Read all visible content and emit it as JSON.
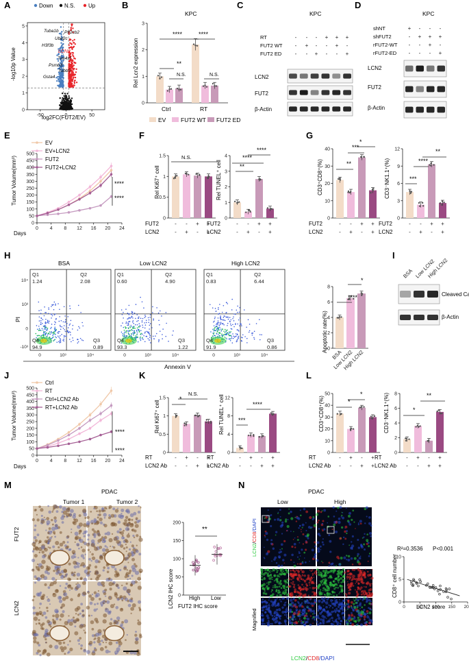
{
  "figure": {
    "background": "#ffffff",
    "axis_color": "#222222"
  },
  "colors": {
    "ev": "#f3dcc8",
    "fut2wt": "#f0bcdc",
    "fut2ed": "#c89ab8",
    "rt": "#f3dcc8",
    "lcn2": "#c07aa8",
    "dark": "#9a4a82",
    "up": "#e8262b",
    "down": "#4a7fc0",
    "ns": "#111111",
    "green": "#2ecc40",
    "red": "#e02828",
    "blue": "#2545c8",
    "ihc": "#a0764a"
  },
  "panels": {
    "A": {
      "letter": "A",
      "legend": [
        "Down",
        "N.S.",
        "Up"
      ],
      "ylabel": "-log10p Value",
      "xlabel": "log2FC(FUT2/EV)",
      "genes": [
        "Tuba1b",
        "Ube2c",
        "H3f3b",
        "Ptf2cb2",
        "LCN2",
        "Tim4sf",
        "Psmb3",
        "Tubb5",
        "Gsta4"
      ]
    },
    "B": {
      "letter": "B",
      "title": "KPC",
      "ylabel": "Rel Lcn2 expression",
      "groups": [
        "Ctrl",
        "RT"
      ],
      "legend": [
        "EV",
        "FUT2 WT",
        "FUT2 ED"
      ],
      "stars": [
        "**",
        "N.S.",
        "****",
        "****",
        "N.S."
      ]
    },
    "C": {
      "letter": "C",
      "title": "KPC",
      "rows": [
        "RT",
        "FUT2 WT",
        "FUT2 ED"
      ],
      "signs": [
        [
          "-",
          "-",
          "-",
          "+",
          "+",
          "+"
        ],
        [
          "-",
          "+",
          "-",
          "-",
          "+",
          "-"
        ],
        [
          "-",
          "-",
          "+",
          "-",
          "-",
          "+"
        ]
      ],
      "bands": [
        "LCN2",
        "FUT2",
        "β-Actin"
      ]
    },
    "D": {
      "letter": "D",
      "title": "KPC",
      "rows": [
        "shNT",
        "shFUT2",
        "rFUT2-WT",
        "rFUT2-ED"
      ],
      "signs": [
        [
          "+",
          "-",
          "-",
          "-"
        ],
        [
          "-",
          "+",
          "+",
          "+"
        ],
        [
          "-",
          "-",
          "+",
          "-"
        ],
        [
          "-",
          "-",
          "-",
          "+"
        ]
      ],
      "bands": [
        "LCN2",
        "FUT2",
        "β-Actin"
      ]
    },
    "E": {
      "letter": "E",
      "ylabel": "Tumor Volume(mm³)",
      "xlabel": "Days",
      "legend": [
        "EV",
        "EV+LCN2",
        "FUT2",
        "FUT2+LCN2"
      ],
      "stars": [
        "****",
        "****"
      ]
    },
    "F": {
      "letter": "F",
      "plots": [
        {
          "ylabel": "Rel Ki67⁺ cell",
          "stars": [
            "N.S."
          ]
        },
        {
          "ylabel": "Rel TUNEL⁺ cell",
          "stars": [
            "****",
            "**",
            "****"
          ]
        }
      ],
      "rows": [
        "FUT2",
        "LCN2"
      ],
      "signs": [
        [
          "-",
          "-",
          "+",
          "+"
        ],
        [
          "-",
          "+",
          "-",
          "+"
        ]
      ]
    },
    "G": {
      "letter": "G",
      "plots": [
        {
          "ylabel": "CD3⁺CD8⁺(%)",
          "stars": [
            "**",
            "***",
            "*"
          ]
        },
        {
          "ylabel": "CD3⁻NK1.1⁺(%)",
          "stars": [
            "***",
            "****",
            "**"
          ]
        }
      ],
      "rows": [
        "FUT2",
        "LCN2"
      ],
      "signs": [
        [
          "-",
          "-",
          "+",
          "+"
        ],
        [
          "-",
          "+",
          "-",
          "+"
        ]
      ]
    },
    "H": {
      "letter": "H",
      "plots": [
        {
          "title": "BSA",
          "q1": "1.24",
          "q2": "2.08",
          "q4": "94.9",
          "q3": "0.89"
        },
        {
          "title": "Low LCN2",
          "q1": "0.60",
          "q2": "4.90",
          "q4": "93.3",
          "q3": "1.22"
        },
        {
          "title": "High LCN2",
          "q1": "0.83",
          "q2": "6.44",
          "q4": "91.9",
          "q3": "0.86"
        }
      ],
      "quad_labels": [
        "Q1",
        "Q2",
        "Q3",
        "Q4"
      ],
      "ticks": [
        "10⁴",
        "10³",
        "0",
        "-10³",
        "10³",
        "10⁴"
      ],
      "ylabel": "PI",
      "xlabel": "Annexin V",
      "bar": {
        "ylabel": "Apoptotic rate(%)",
        "categories": [
          "BSA",
          "Low LCN2",
          "High LCN2"
        ],
        "stars": [
          "****",
          "*"
        ]
      }
    },
    "I": {
      "letter": "I",
      "cols": [
        "BSA",
        "Low LCN2",
        "High LCN2"
      ],
      "bands": [
        "Cleaved Caspase-3",
        "β-Actin"
      ]
    },
    "J": {
      "letter": "J",
      "ylabel": "Tumor Volume(mm³)",
      "xlabel": "Days",
      "legend": [
        "Ctrl",
        "RT",
        "Ctrl+LCN2 Ab",
        "RT+LCN2 Ab"
      ],
      "stars": [
        "****",
        "****"
      ]
    },
    "K": {
      "letter": "K",
      "plots": [
        {
          "ylabel": "Rel Ki67⁺ cell",
          "stars": [
            "*",
            "N.S."
          ]
        },
        {
          "ylabel": "Rel TUNEL⁺ cell",
          "stars": [
            "***",
            "****"
          ]
        }
      ],
      "rows": [
        "RT",
        "LCN2 Ab"
      ],
      "signs": [
        [
          "-",
          "+",
          "-",
          "+"
        ],
        [
          "-",
          "-",
          "+",
          "+"
        ]
      ]
    },
    "L": {
      "letter": "L",
      "plots": [
        {
          "ylabel": "CD3⁺CD8⁺(%)",
          "stars": [
            "*",
            "*"
          ]
        },
        {
          "ylabel": "CD3⁻NK1.1⁺(%)",
          "stars": [
            "*",
            "**"
          ]
        }
      ],
      "rows": [
        "RT",
        "LCN2 Ab"
      ],
      "signs": [
        [
          "-",
          "+",
          "-",
          "+"
        ],
        [
          "-",
          "-",
          "+",
          "+"
        ]
      ]
    },
    "M": {
      "letter": "M",
      "title": "PDAC",
      "cols": [
        "Tumor 1",
        "Tumor 2"
      ],
      "rows": [
        "FUT2",
        "LCN2"
      ],
      "ylabel": "LCN2 IHC score",
      "xlabel": "FUT2 IHC score",
      "categories": [
        "High",
        "Low"
      ],
      "stars": "**"
    },
    "N": {
      "letter": "N",
      "title": "PDAC",
      "cols": [
        "Low",
        "High"
      ],
      "side": [
        "LCN2",
        "/",
        "CD8",
        "/DAPI"
      ],
      "magnified": "Magnified",
      "bottom": [
        "LCN2",
        "/",
        "CD8",
        "/DAPI"
      ],
      "stat1": "R²=0.3536",
      "stat2": "P<0.001",
      "ylabel": "CD8⁺ cell number",
      "xlabel": "LCN2 score"
    }
  },
  "chart_data": [
    {
      "type": "scatter",
      "panel": "A",
      "title": "",
      "xlabel": "log2FC(FUT2/EV)",
      "ylabel": "-log10p Value",
      "xlim": [
        -75,
        75
      ],
      "ylim": [
        0,
        5.2
      ],
      "xticks": [
        -50,
        0,
        50
      ],
      "yticks": [
        0,
        1,
        2,
        3,
        4,
        5
      ],
      "threshold": 1.3,
      "legend": [
        "Down",
        "N.S.",
        "Up"
      ]
    },
    {
      "type": "bar",
      "panel": "B",
      "title": "KPC",
      "ylabel": "Rel Lcn2 expression",
      "categories": [
        "Ctrl",
        "RT"
      ],
      "series": [
        {
          "name": "EV",
          "values": [
            1.0,
            2.2
          ]
        },
        {
          "name": "FUT2 WT",
          "values": [
            0.5,
            0.65
          ]
        },
        {
          "name": "FUT2 ED",
          "values": [
            0.55,
            0.65
          ]
        }
      ],
      "ylim": [
        0,
        3
      ],
      "yticks": [
        0,
        1,
        2,
        3
      ]
    },
    {
      "type": "line",
      "panel": "E",
      "xlabel": "Days",
      "ylabel": "Tumor Volume(mm³)",
      "x": [
        0,
        3,
        6,
        9,
        12,
        15,
        18,
        21
      ],
      "xticks": [
        0,
        4,
        8,
        12,
        16,
        20,
        24
      ],
      "yticks": [
        0,
        50,
        100,
        150,
        200,
        250,
        300,
        350,
        400,
        450,
        500
      ],
      "ylim": [
        0,
        500
      ],
      "series": [
        {
          "name": "EV",
          "values": [
            50,
            70,
            95,
            130,
            175,
            230,
            300,
            380
          ]
        },
        {
          "name": "EV+LCN2",
          "values": [
            50,
            75,
            105,
            150,
            200,
            260,
            330,
            410
          ]
        },
        {
          "name": "FUT2",
          "values": [
            50,
            58,
            65,
            75,
            90,
            105,
            125,
            190
          ]
        },
        {
          "name": "FUT2+LCN2",
          "values": [
            50,
            70,
            95,
            130,
            170,
            215,
            270,
            350
          ]
        }
      ]
    },
    {
      "type": "bar",
      "panel": "F-Ki67",
      "ylabel": "Rel Ki67⁺ cell",
      "categories": [
        "1",
        "2",
        "3",
        "4"
      ],
      "values": [
        1.0,
        1.05,
        1.02,
        1.0
      ],
      "ylim": [
        0,
        1.5
      ],
      "yticks": [
        0,
        0.5,
        1.0,
        1.5
      ]
    },
    {
      "type": "bar",
      "panel": "F-TUNEL",
      "ylabel": "Rel TUNEL⁺ cell",
      "categories": [
        "1",
        "2",
        "3",
        "4"
      ],
      "values": [
        1.0,
        0.4,
        2.5,
        0.6
      ],
      "ylim": [
        0,
        4
      ],
      "yticks": [
        0,
        1,
        2,
        3,
        4
      ]
    },
    {
      "type": "bar",
      "panel": "G-CD8",
      "ylabel": "CD3⁺CD8⁺(%)",
      "categories": [
        "1",
        "2",
        "3",
        "4"
      ],
      "values": [
        22,
        15,
        35,
        16
      ],
      "ylim": [
        0,
        40
      ],
      "yticks": [
        0,
        10,
        20,
        30,
        40
      ]
    },
    {
      "type": "bar",
      "panel": "G-NK",
      "ylabel": "CD3⁻NK1.1⁺(%)",
      "categories": [
        "1",
        "2",
        "3",
        "4"
      ],
      "values": [
        4.5,
        2.3,
        9.3,
        2.6
      ],
      "ylim": [
        0,
        12
      ],
      "yticks": [
        0,
        3,
        6,
        9,
        12
      ]
    },
    {
      "type": "bar",
      "panel": "H-apoptosis",
      "ylabel": "Apoptotic rate(%)",
      "categories": [
        "BSA",
        "Low LCN2",
        "High LCN2"
      ],
      "values": [
        4.0,
        6.5,
        7.1
      ],
      "ylim": [
        0,
        8
      ],
      "yticks": [
        0,
        2,
        4,
        6,
        8
      ]
    },
    {
      "type": "line",
      "panel": "J",
      "xlabel": "Days",
      "ylabel": "Tumor Volume(mm³)",
      "x": [
        0,
        3,
        6,
        9,
        12,
        15,
        18,
        21
      ],
      "xticks": [
        0,
        4,
        8,
        12,
        16,
        20,
        24
      ],
      "yticks": [
        0,
        50,
        100,
        150,
        200,
        250,
        300,
        350,
        400,
        450,
        500
      ],
      "ylim": [
        0,
        500
      ],
      "series": [
        {
          "name": "Ctrl",
          "values": [
            50,
            80,
            120,
            170,
            230,
            300,
            380,
            480
          ]
        },
        {
          "name": "RT",
          "values": [
            50,
            65,
            90,
            120,
            160,
            200,
            260,
            310
          ]
        },
        {
          "name": "Ctrl+LCN2 Ab",
          "values": [
            50,
            75,
            110,
            150,
            200,
            260,
            310,
            370
          ]
        },
        {
          "name": "RT+LCN2 Ab",
          "values": [
            50,
            58,
            70,
            85,
            100,
            120,
            150,
            175
          ]
        }
      ]
    },
    {
      "type": "bar",
      "panel": "K-Ki67",
      "ylabel": "Rel Ki67⁺ cell",
      "categories": [
        "1",
        "2",
        "3",
        "4"
      ],
      "values": [
        1.0,
        0.78,
        1.02,
        0.85
      ],
      "ylim": [
        0,
        1.5
      ],
      "yticks": [
        0,
        0.5,
        1.0,
        1.5
      ]
    },
    {
      "type": "bar",
      "panel": "K-TUNEL",
      "ylabel": "Rel TUNEL⁺ cell",
      "categories": [
        "1",
        "2",
        "3",
        "4"
      ],
      "values": [
        1.0,
        3.8,
        3.6,
        8.5
      ],
      "ylim": [
        0,
        12
      ],
      "yticks": [
        0,
        4,
        8,
        12
      ]
    },
    {
      "type": "bar",
      "panel": "L-CD8",
      "ylabel": "CD3⁺CD8⁺(%)",
      "categories": [
        "1",
        "2",
        "3",
        "4"
      ],
      "values": [
        33,
        20,
        38,
        30
      ],
      "ylim": [
        0,
        50
      ],
      "yticks": [
        0,
        10,
        20,
        30,
        40,
        50
      ]
    },
    {
      "type": "bar",
      "panel": "L-NK",
      "ylabel": "CD3⁻NK1.1⁺(%)",
      "categories": [
        "1",
        "2",
        "3",
        "4"
      ],
      "values": [
        1.8,
        3.6,
        1.6,
        5.5
      ],
      "ylim": [
        0,
        8
      ],
      "yticks": [
        0,
        2,
        4,
        6,
        8
      ]
    },
    {
      "type": "scatter",
      "panel": "M",
      "ylabel": "LCN2 IHC score",
      "xlabel": "FUT2 IHC score",
      "categories": [
        "High",
        "Low"
      ],
      "means": [
        82,
        112
      ],
      "ylim": [
        0,
        200
      ],
      "yticks": [
        0,
        50,
        100,
        150,
        200
      ]
    },
    {
      "type": "scatter",
      "panel": "N",
      "ylabel": "CD8⁺ cell number",
      "xlabel": "LCN2 score",
      "xlim": [
        0,
        200
      ],
      "ylim": [
        0,
        10
      ],
      "xticks": [
        0,
        50,
        100,
        150,
        200
      ],
      "yticks": [
        0,
        5,
        10
      ],
      "fit": {
        "slope": -0.022,
        "intercept": 5.2
      }
    }
  ]
}
